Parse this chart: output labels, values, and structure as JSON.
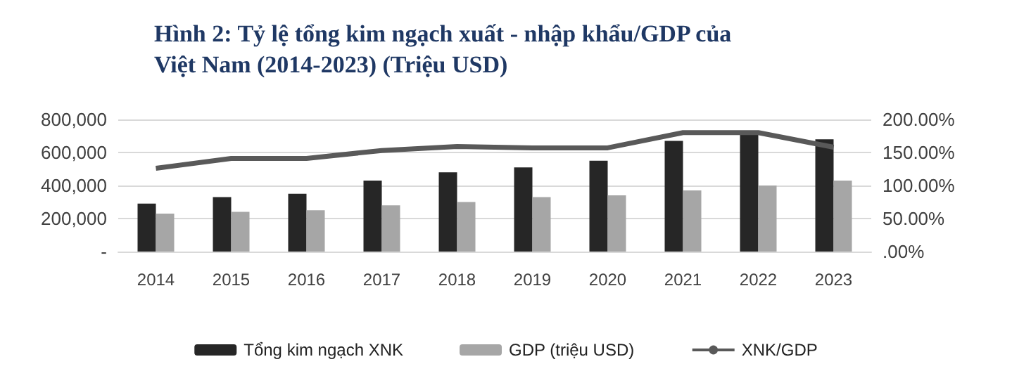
{
  "chart_data": {
    "type": "bar",
    "title": "Hình 2: Tỷ lệ tổng kim ngạch xuất - nhập khẩu/GDP của Việt Nam (2014-2023) (Triệu USD)",
    "categories": [
      "2014",
      "2015",
      "2016",
      "2017",
      "2018",
      "2019",
      "2020",
      "2021",
      "2022",
      "2023"
    ],
    "series": [
      {
        "name": "Tổng kim ngạch XNK",
        "color": "#262626",
        "values": [
          290000,
          330000,
          350000,
          430000,
          480000,
          510000,
          550000,
          670000,
          720000,
          680000
        ]
      },
      {
        "name": "GDP (triệu USD)",
        "color": "#a6a6a6",
        "values": [
          230000,
          240000,
          250000,
          280000,
          300000,
          330000,
          340000,
          370000,
          400000,
          430000
        ]
      },
      {
        "name": "XNK/GDP",
        "type": "line",
        "axis": "y2",
        "color": "#595959",
        "marker": "none",
        "values": [
          126,
          141,
          141,
          153,
          159,
          157,
          157,
          180,
          180,
          158
        ]
      }
    ],
    "ylim": [
      0,
      800000
    ],
    "yticks": [
      {
        "value": 0,
        "label": "-"
      },
      {
        "value": 200000,
        "label": "200,000"
      },
      {
        "value": 400000,
        "label": "400,000"
      },
      {
        "value": 600000,
        "label": "600,000"
      },
      {
        "value": 800000,
        "label": "800,000"
      }
    ],
    "y2lim": [
      0,
      200
    ],
    "y2ticks": [
      {
        "value": 0,
        "label": ".00%"
      },
      {
        "value": 50,
        "label": "50.00%"
      },
      {
        "value": 100,
        "label": "100.00%"
      },
      {
        "value": 150,
        "label": "150.00%"
      },
      {
        "value": 200,
        "label": "200.00%"
      }
    ],
    "grid": "y",
    "legend": "bottom"
  }
}
